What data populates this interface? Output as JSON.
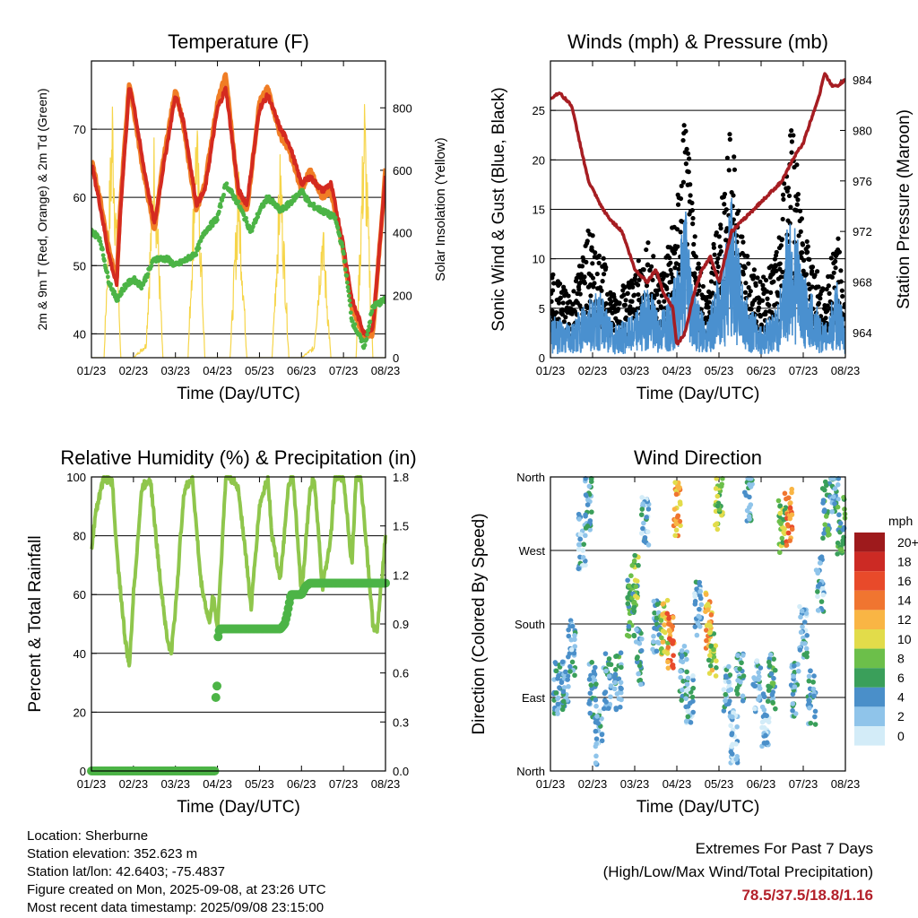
{
  "footer": {
    "location": "Location: Sherburne",
    "elevation": "Station elevation: 352.623 m",
    "latlon": "Station lat/lon: 42.6403; -75.4837",
    "created": "Figure created on Mon, 2025-09-08, at 23:26 UTC",
    "recent": "Most recent data timestamp: 2025/09/08 23:15:00"
  },
  "extremes": {
    "title": "Extremes For Past 7 Days",
    "subtitle": "(High/Low/Max Wind/Total Precipitation)",
    "values": "78.5/37.5/18.8/1.16"
  },
  "colors": {
    "temp2m": "#d42a20",
    "temp9m": "#f07d25",
    "dewpoint": "#4cb446",
    "solar": "#f6d54a",
    "gust": "#000000",
    "wind": "#4a90cf",
    "pressure": "#a61d22",
    "rh": "#8fc64c",
    "precip": "#4cb446"
  },
  "chart_data": [
    {
      "id": "temperature",
      "type": "line",
      "title": "Temperature (F)",
      "xlabel": "Time (Day/UTC)",
      "ylabel": "2m & 9m T (Red, Orange) & 2m Td (Green)",
      "y2label": "Solar Insolation (Yellow)",
      "x_ticks": [
        "01/23",
        "02/23",
        "03/23",
        "04/23",
        "05/23",
        "06/23",
        "07/23",
        "08/23"
      ],
      "ylim": [
        36.5,
        80
      ],
      "y_ticks": [
        40,
        50,
        60,
        70
      ],
      "y2lim": [
        0,
        950
      ],
      "y2_ticks": [
        0,
        200,
        400,
        600,
        800
      ],
      "grid": "horizontal",
      "series": [
        {
          "axis": "y2",
          "x": [
            0,
            0.3,
            0.5,
            0.7,
            0.9,
            1.0,
            1.3,
            1.5,
            1.7,
            1.9,
            2.0,
            2.3,
            2.5,
            2.7,
            2.9,
            3.0,
            3.3,
            3.5,
            3.7,
            3.9,
            4.0,
            4.3,
            4.5,
            4.7,
            4.9,
            5.0,
            5.3,
            5.5,
            5.7,
            5.9,
            6.0,
            6.3,
            6.5,
            6.7,
            6.9,
            7.0
          ],
          "values": [
            0,
            0,
            900,
            0,
            0,
            0,
            50,
            780,
            0,
            0,
            0,
            0,
            850,
            0,
            0,
            0,
            0,
            640,
            0,
            0,
            0,
            0,
            700,
            0,
            0,
            0,
            40,
            480,
            0,
            0,
            0,
            0,
            890,
            0,
            0,
            0
          ]
        },
        {
          "axis": "y",
          "x": [
            0,
            0.2,
            0.4,
            0.6,
            0.7,
            0.9,
            1.0,
            1.2,
            1.5,
            1.7,
            2.0,
            2.2,
            2.5,
            2.7,
            3.0,
            3.2,
            3.5,
            3.7,
            4.0,
            4.2,
            4.5,
            4.7,
            5.0,
            5.2,
            5.5,
            5.7,
            6.0,
            6.2,
            6.5,
            6.7,
            7.0
          ],
          "values": [
            65.5,
            60,
            53,
            48,
            60,
            77,
            73,
            65,
            55,
            65,
            76,
            70,
            58,
            62,
            74,
            78,
            60,
            58,
            74,
            76,
            69,
            67,
            61,
            64,
            60,
            61,
            52,
            44,
            39.5,
            40,
            64
          ]
        },
        {
          "axis": "y",
          "x": [
            0,
            0.2,
            0.4,
            0.6,
            0.7,
            0.9,
            1.0,
            1.2,
            1.5,
            1.7,
            2.0,
            2.2,
            2.5,
            2.7,
            3.0,
            3.2,
            3.5,
            3.7,
            4.0,
            4.2,
            4.5,
            4.7,
            5.0,
            5.2,
            5.5,
            5.7,
            6.0,
            6.2,
            6.5,
            6.7,
            7.0
          ],
          "values": [
            65,
            59,
            52,
            47,
            59,
            76,
            74,
            66,
            56,
            64,
            75,
            71,
            59,
            61,
            73,
            76,
            61,
            59,
            73,
            75,
            70,
            68,
            62,
            63,
            61,
            62,
            53,
            45,
            40,
            41,
            63
          ]
        },
        {
          "axis": "y",
          "x": [
            0,
            0.2,
            0.4,
            0.6,
            0.8,
            1.0,
            1.2,
            1.5,
            1.8,
            2.0,
            2.3,
            2.5,
            2.7,
            3.0,
            3.2,
            3.5,
            3.8,
            4.0,
            4.2,
            4.5,
            4.7,
            5.0,
            5.2,
            5.5,
            5.8,
            6.0,
            6.2,
            6.5,
            6.7,
            7.0
          ],
          "values": [
            55,
            54,
            48,
            45,
            47,
            48,
            47,
            51,
            51,
            50,
            51,
            52,
            55,
            57,
            62,
            59,
            55,
            58,
            60,
            58,
            59,
            61,
            59,
            58,
            57,
            52,
            42,
            38,
            44,
            45
          ]
        }
      ]
    },
    {
      "id": "winds",
      "type": "line",
      "title": "Winds (mph) & Pressure (mb)",
      "xlabel": "Time (Day/UTC)",
      "ylabel": "Sonic Wind & Gust (Blue, Black)",
      "y2label": "Station Pressure (Maroon)",
      "x_ticks": [
        "01/23",
        "02/23",
        "03/23",
        "04/23",
        "05/23",
        "06/23",
        "07/23",
        "08/23"
      ],
      "ylim": [
        0,
        30
      ],
      "y_ticks": [
        0,
        5,
        10,
        15,
        20,
        25
      ],
      "y2lim": [
        962,
        985.5
      ],
      "y2_ticks": [
        964,
        968,
        972,
        976,
        980,
        984
      ],
      "grid": "horizontal",
      "series": [
        {
          "axis": "y",
          "x": [
            0,
            0.5,
            0.9,
            1.2,
            1.5,
            2.0,
            2.3,
            2.6,
            3.0,
            3.2,
            3.4,
            3.7,
            4.0,
            4.3,
            4.6,
            5.0,
            5.4,
            5.7,
            6.0,
            6.5,
            6.8,
            7.0
          ],
          "values": [
            8,
            6,
            12,
            10,
            6,
            8,
            11,
            8,
            14,
            24,
            12,
            6,
            14,
            22,
            10,
            7,
            10,
            25,
            12,
            6,
            12,
            5
          ]
        },
        {
          "axis": "y",
          "x": [
            0,
            0.5,
            0.9,
            1.2,
            1.5,
            2.0,
            2.3,
            2.6,
            3.0,
            3.2,
            3.4,
            3.7,
            4.0,
            4.3,
            4.6,
            5.0,
            5.4,
            5.7,
            6.0,
            6.5,
            6.8,
            7.0
          ],
          "values": [
            4,
            3,
            6,
            6,
            3,
            4,
            7,
            4,
            8,
            15,
            7,
            3,
            8,
            15,
            6,
            3,
            5,
            15,
            8,
            3,
            7,
            3
          ]
        },
        {
          "axis": "y2",
          "x": [
            0,
            0.2,
            0.5,
            0.7,
            0.9,
            1.2,
            1.4,
            1.7,
            2.0,
            2.3,
            2.5,
            2.7,
            2.9,
            3.0,
            3.2,
            3.4,
            3.6,
            3.8,
            4.0,
            4.3,
            4.6,
            4.9,
            5.2,
            5.5,
            5.8,
            6.0,
            6.2,
            6.4,
            6.5,
            6.6,
            6.7,
            6.8,
            7.0
          ],
          "values": [
            982.5,
            983,
            982,
            979,
            976,
            974,
            973,
            972,
            969,
            968,
            969,
            967,
            966,
            963,
            964,
            967,
            969,
            970,
            968,
            972,
            973,
            974,
            975,
            976,
            978,
            979,
            981,
            983,
            984.5,
            984,
            983.5,
            983.5,
            984
          ]
        }
      ]
    },
    {
      "id": "humidity",
      "type": "line",
      "title": "Relative Humidity (%) & Precipitation (in)",
      "xlabel": "Time (Day/UTC)",
      "ylabel": "Percent & Total Rainfall",
      "x_ticks": [
        "01/23",
        "02/23",
        "03/23",
        "04/23",
        "05/23",
        "06/23",
        "07/23",
        "08/23"
      ],
      "ylim": [
        0,
        100
      ],
      "y_ticks": [
        0,
        20,
        40,
        60,
        80,
        100
      ],
      "y2lim": [
        0,
        1.8
      ],
      "y2_ticks": [
        "0.0",
        "0.3",
        "0.6",
        "0.9",
        "1.2",
        "1.5",
        "1.8"
      ],
      "grid": "horizontal",
      "series": [
        {
          "axis": "y",
          "x": [
            0,
            0.1,
            0.3,
            0.5,
            0.6,
            0.8,
            0.9,
            1.0,
            1.2,
            1.4,
            1.6,
            1.8,
            1.9,
            2.0,
            2.2,
            2.4,
            2.6,
            2.8,
            2.9,
            3.0,
            3.2,
            3.3,
            3.5,
            3.7,
            3.8,
            4.0,
            4.2,
            4.3,
            4.5,
            4.7,
            4.8,
            5.0,
            5.2,
            5.3,
            5.5,
            5.7,
            5.8,
            6.0,
            6.2,
            6.3,
            6.4,
            6.5,
            6.7,
            6.8,
            7.0
          ],
          "values": [
            75,
            88,
            100,
            98,
            75,
            45,
            35,
            60,
            96,
            100,
            70,
            45,
            40,
            55,
            95,
            100,
            65,
            50,
            60,
            48,
            100,
            100,
            96,
            70,
            55,
            90,
            100,
            80,
            65,
            98,
            100,
            60,
            95,
            100,
            62,
            80,
            100,
            100,
            70,
            100,
            100,
            85,
            50,
            47,
            80
          ]
        },
        {
          "axis": "y",
          "x": [
            0,
            0.5,
            1.0,
            1.5,
            2.0,
            2.5,
            2.95,
            2.95,
            3.0,
            3.0,
            3.05,
            3.05,
            3.5,
            4.0,
            4.5,
            4.6,
            4.65,
            4.75,
            5.0,
            5.1,
            5.2,
            5.5,
            6.0,
            6.5,
            7.0
          ],
          "values": [
            0,
            0,
            0,
            0,
            0,
            0,
            0,
            0.42,
            0.55,
            0.8,
            0.87,
            0.87,
            0.87,
            0.87,
            0.87,
            0.9,
            0.95,
            1.08,
            1.08,
            1.13,
            1.15,
            1.15,
            1.15,
            1.15,
            1.15
          ]
        }
      ]
    },
    {
      "id": "direction",
      "type": "scatter",
      "title": "Wind Direction",
      "xlabel": "Time (Day/UTC)",
      "ylabel": "Direction (Colored By Speed)",
      "x_ticks": [
        "01/23",
        "02/23",
        "03/23",
        "04/23",
        "05/23",
        "06/23",
        "07/23",
        "08/23"
      ],
      "y_ticks": [
        "North",
        "East",
        "South",
        "West",
        "North"
      ],
      "ylim": [
        0,
        360
      ],
      "legend": {
        "title": "mph",
        "labels": [
          "20+",
          "18",
          "16",
          "14",
          "12",
          "10",
          "8",
          "6",
          "4",
          "2",
          "0"
        ],
        "position": "right"
      },
      "color_scale": [
        "#d3ecf8",
        "#8fc4ea",
        "#4a8fc9",
        "#3a9f5a",
        "#6cbf4a",
        "#e2dc4a",
        "#f9b544",
        "#f07530",
        "#e84a2a",
        "#cc2a24",
        "#9e1a1c"
      ],
      "clusters": [
        {
          "x": 0.15,
          "dir": 100,
          "speed": 3
        },
        {
          "x": 0.35,
          "dir": 110,
          "speed": 4
        },
        {
          "x": 0.5,
          "dir": 150,
          "speed": 3
        },
        {
          "x": 0.75,
          "dir": 280,
          "speed": 3
        },
        {
          "x": 0.9,
          "dir": 330,
          "speed": 4
        },
        {
          "x": 1.0,
          "dir": 100,
          "speed": 4
        },
        {
          "x": 1.15,
          "dir": 40,
          "speed": 3
        },
        {
          "x": 1.35,
          "dir": 110,
          "speed": 4
        },
        {
          "x": 1.6,
          "dir": 110,
          "speed": 5
        },
        {
          "x": 1.9,
          "dir": 200,
          "speed": 6
        },
        {
          "x": 2.0,
          "dir": 230,
          "speed": 7
        },
        {
          "x": 2.1,
          "dir": 140,
          "speed": 4
        },
        {
          "x": 2.25,
          "dir": 300,
          "speed": 3
        },
        {
          "x": 2.5,
          "dir": 180,
          "speed": 4
        },
        {
          "x": 2.7,
          "dir": 175,
          "speed": 10
        },
        {
          "x": 2.85,
          "dir": 160,
          "speed": 14
        },
        {
          "x": 3.0,
          "dir": 320,
          "speed": 12
        },
        {
          "x": 3.15,
          "dir": 120,
          "speed": 4
        },
        {
          "x": 3.3,
          "dir": 90,
          "speed": 3
        },
        {
          "x": 3.5,
          "dir": 200,
          "speed": 3
        },
        {
          "x": 3.75,
          "dir": 185,
          "speed": 12
        },
        {
          "x": 3.85,
          "dir": 150,
          "speed": 9
        },
        {
          "x": 4.0,
          "dir": 330,
          "speed": 8
        },
        {
          "x": 4.2,
          "dir": 100,
          "speed": 3
        },
        {
          "x": 4.35,
          "dir": 40,
          "speed": 2
        },
        {
          "x": 4.5,
          "dir": 110,
          "speed": 4
        },
        {
          "x": 4.7,
          "dir": 340,
          "speed": 4
        },
        {
          "x": 4.9,
          "dir": 100,
          "speed": 3
        },
        {
          "x": 5.1,
          "dir": 60,
          "speed": 2
        },
        {
          "x": 5.25,
          "dir": 110,
          "speed": 5
        },
        {
          "x": 5.5,
          "dir": 300,
          "speed": 8
        },
        {
          "x": 5.65,
          "dir": 310,
          "speed": 14
        },
        {
          "x": 5.8,
          "dir": 100,
          "speed": 4
        },
        {
          "x": 6.0,
          "dir": 170,
          "speed": 3
        },
        {
          "x": 6.2,
          "dir": 90,
          "speed": 4
        },
        {
          "x": 6.4,
          "dir": 230,
          "speed": 3
        },
        {
          "x": 6.55,
          "dir": 320,
          "speed": 6
        },
        {
          "x": 6.75,
          "dir": 350,
          "speed": 4
        },
        {
          "x": 6.9,
          "dir": 300,
          "speed": 6
        }
      ]
    }
  ]
}
